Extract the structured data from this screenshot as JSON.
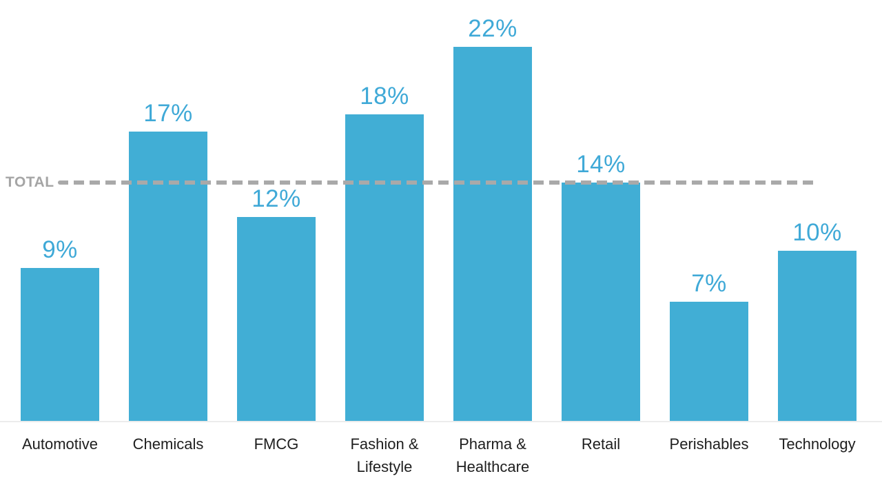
{
  "chart_data": {
    "type": "bar",
    "title": "",
    "xlabel": "",
    "ylabel": "",
    "categories": [
      "Automotive",
      "Chemicals",
      "FMCG",
      "Fashion & Lifestyle",
      "Pharma & Healthcare",
      "Retail",
      "Perishables",
      "Technology"
    ],
    "values": [
      9,
      17,
      12,
      18,
      22,
      14,
      7,
      10
    ],
    "value_suffix": "%",
    "total_line": {
      "label": "TOTAL",
      "value": 14
    },
    "ylim": [
      0,
      24.7
    ],
    "grid": false,
    "legend": "none",
    "colors": {
      "bar": "#41AED5",
      "value_label": "#3FA9D7",
      "total_line": "#A9A9A9",
      "total_label": "#A5A5A5",
      "axis_line": "#ECECEC",
      "category_label": "#1E1E1E",
      "background": "#FFFFFF"
    }
  }
}
